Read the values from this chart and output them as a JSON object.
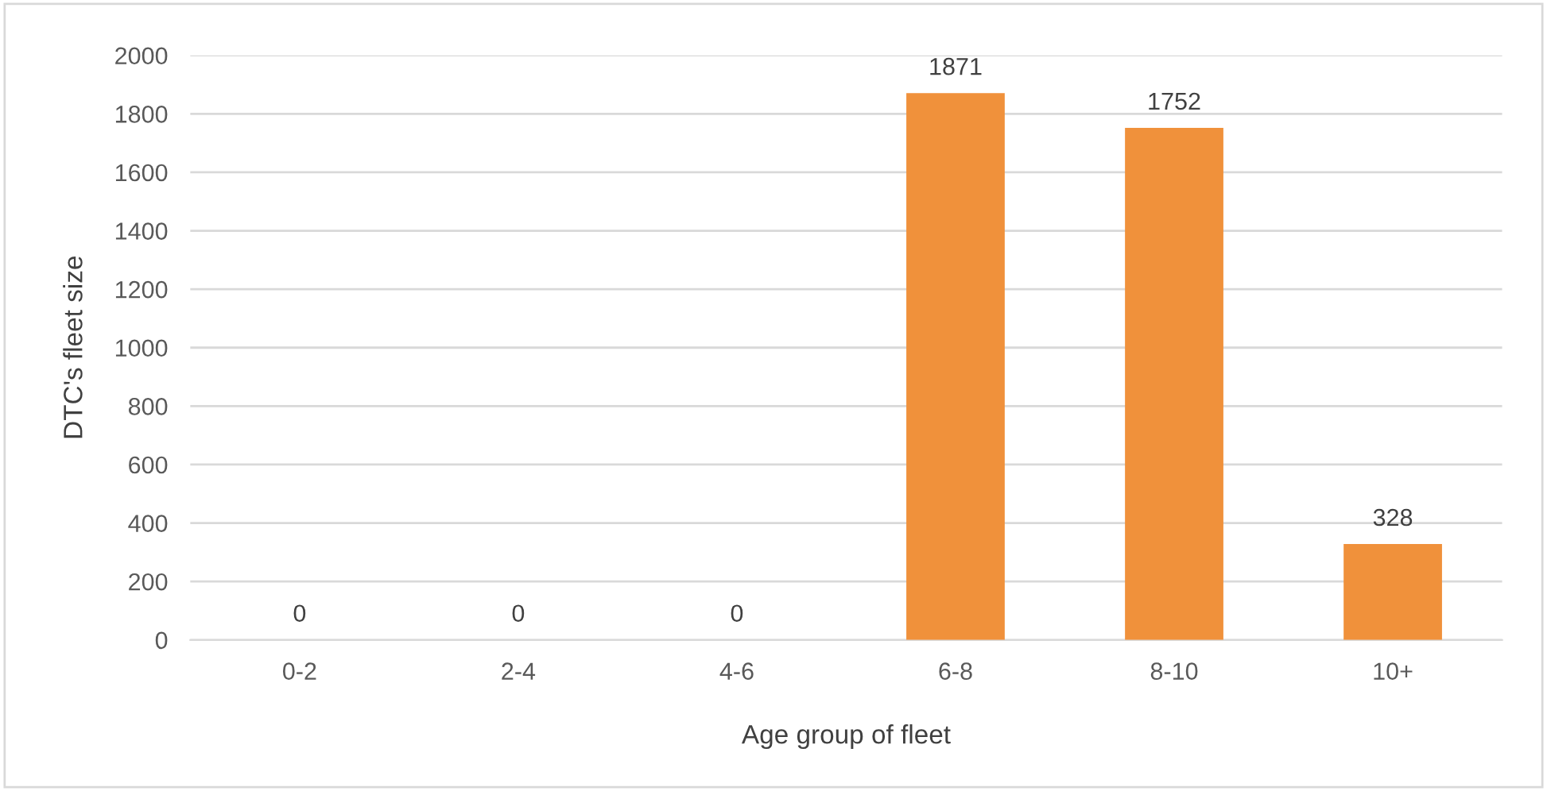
{
  "chart_data": {
    "type": "bar",
    "xlabel": "Age group of fleet",
    "ylabel": "DTC's fleet size",
    "categories": [
      "0-2",
      "2-4",
      "4-6",
      "6-8",
      "8-10",
      "10+"
    ],
    "values": [
      0,
      0,
      0,
      1871,
      1752,
      328
    ],
    "color": "#f0913b",
    "ylim": [
      0,
      2000
    ],
    "yticks": [
      0,
      200,
      400,
      600,
      800,
      1000,
      1200,
      1400,
      1600,
      1800,
      2000
    ],
    "grid": "y",
    "data_labels": true
  }
}
